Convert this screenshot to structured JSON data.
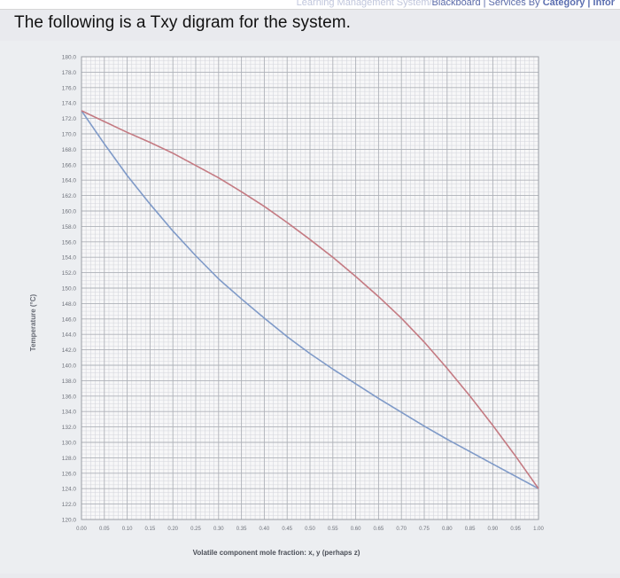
{
  "browser": {
    "crumb_faded": "Learning Management System/",
    "crumb_main": "Blackboard | Services By ",
    "crumb_bold": "Category | Infor"
  },
  "question": {
    "text": "The following is a Txy digram for the system."
  },
  "colors": {
    "liquid_line": "#7f9ac8",
    "vapor_line": "#c47a82",
    "grid_minor": "#d4d6dc",
    "grid_major": "#aeb1b8",
    "plot_bg": "#f7f7f8"
  },
  "chart_data": {
    "type": "line",
    "title": "",
    "xlabel": "Volatile component mole fraction: x, y (perhaps z)",
    "ylabel": "Temperature (°C)",
    "xlim": [
      0,
      1
    ],
    "ylim": [
      120,
      180
    ],
    "grid": true,
    "x_ticks": [
      "0.00",
      "0.05",
      "0.10",
      "0.15",
      "0.20",
      "0.25",
      "0.30",
      "0.35",
      "0.40",
      "0.45",
      "0.50",
      "0.55",
      "0.60",
      "0.65",
      "0.70",
      "0.75",
      "0.80",
      "0.85",
      "0.90",
      "0.95",
      "1.00"
    ],
    "y_ticks": [
      "180.0",
      "178.0",
      "176.0",
      "174.0",
      "172.0",
      "170.0",
      "168.0",
      "166.0",
      "164.0",
      "162.0",
      "160.0",
      "158.0",
      "156.0",
      "154.0",
      "152.0",
      "150.0",
      "148.0",
      "146.0",
      "144.0",
      "142.0",
      "140.0",
      "138.0",
      "136.0",
      "134.0",
      "132.0",
      "130.0",
      "128.0",
      "126.0",
      "124.0",
      "122.0",
      "120.0"
    ],
    "series": [
      {
        "key": "liquid",
        "x": [
          0.0,
          0.05,
          0.1,
          0.15,
          0.2,
          0.25,
          0.3,
          0.35,
          0.4,
          0.45,
          0.5,
          0.55,
          0.6,
          0.65,
          0.7,
          0.75,
          0.8,
          0.85,
          0.9,
          0.95,
          1.0
        ],
        "y": [
          173.0,
          168.7,
          164.6,
          160.9,
          157.4,
          154.2,
          151.2,
          148.6,
          146.1,
          143.7,
          141.5,
          139.5,
          137.6,
          135.7,
          133.9,
          132.1,
          130.4,
          128.8,
          127.2,
          125.6,
          124.0
        ]
      },
      {
        "key": "vapor",
        "x": [
          0.0,
          0.05,
          0.1,
          0.15,
          0.2,
          0.25,
          0.3,
          0.35,
          0.4,
          0.45,
          0.5,
          0.55,
          0.6,
          0.65,
          0.7,
          0.75,
          0.8,
          0.85,
          0.9,
          0.95,
          1.0
        ],
        "y": [
          173.0,
          171.6,
          170.2,
          168.9,
          167.5,
          165.9,
          164.3,
          162.5,
          160.6,
          158.5,
          156.3,
          154.0,
          151.5,
          148.9,
          146.1,
          143.0,
          139.6,
          136.0,
          132.2,
          128.2,
          124.0
        ]
      }
    ]
  }
}
